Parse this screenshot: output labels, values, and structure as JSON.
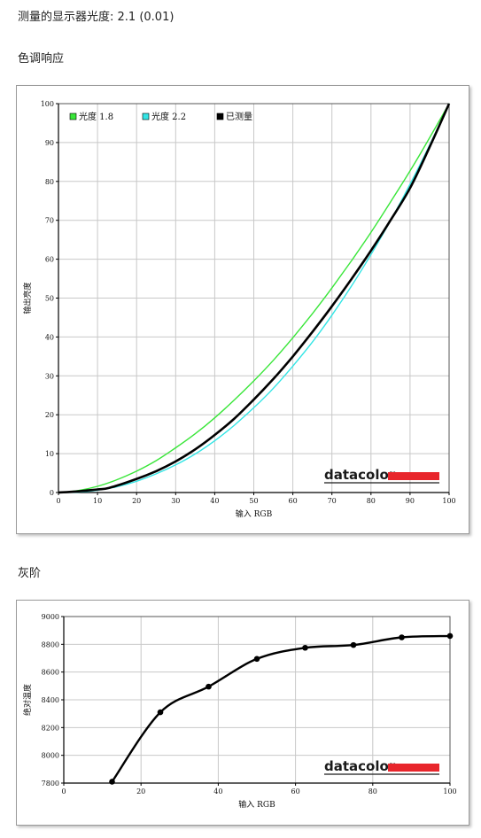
{
  "header": {
    "gamma_label": "测量的显示器光度: 2.1 (0.01)",
    "tone_response_title": "色调响应",
    "grayscale_title": "灰阶"
  },
  "brand": {
    "logo_text": "datacolor",
    "logo_accent": "#e8262c"
  },
  "colors": {
    "gamma18": "#39e639",
    "gamma22": "#33e5e5",
    "measured": "#000000",
    "grid": "#c8c8c8"
  },
  "chart_data": [
    {
      "type": "line",
      "xlabel": "输入 RGB",
      "ylabel": "输出亮度",
      "xlim": [
        0,
        100
      ],
      "ylim": [
        0,
        100
      ],
      "xticks": [
        0,
        10,
        20,
        30,
        40,
        50,
        60,
        70,
        80,
        90,
        100
      ],
      "yticks": [
        0,
        10,
        20,
        30,
        40,
        50,
        60,
        70,
        80,
        90,
        100
      ],
      "grid": true,
      "legend_position": "top-left",
      "series": [
        {
          "name": "光度 1.8",
          "color": "#39e639",
          "x": [
            0,
            5,
            10,
            15,
            20,
            25,
            30,
            35,
            40,
            45,
            50,
            55,
            60,
            65,
            70,
            75,
            80,
            85,
            90,
            95,
            100
          ],
          "y": [
            0,
            0.5,
            1.6,
            3.3,
            5.5,
            8.2,
            11.5,
            15.1,
            19.2,
            23.8,
            28.7,
            34.0,
            39.8,
            46.0,
            52.6,
            59.6,
            66.9,
            74.7,
            82.7,
            91.2,
            100
          ]
        },
        {
          "name": "光度 2.2",
          "color": "#33e5e5",
          "x": [
            0,
            5,
            10,
            15,
            20,
            25,
            30,
            35,
            40,
            45,
            50,
            55,
            60,
            65,
            70,
            75,
            80,
            85,
            90,
            95,
            100
          ],
          "y": [
            0,
            0.1,
            0.6,
            1.5,
            2.9,
            4.8,
            7.1,
            9.9,
            13.3,
            17.3,
            21.8,
            26.8,
            32.5,
            38.7,
            45.6,
            53.1,
            61.2,
            69.9,
            79.3,
            89.3,
            100
          ]
        },
        {
          "name": "已测量",
          "color": "#000000",
          "x": [
            0,
            5,
            10,
            13,
            20,
            25,
            30,
            35,
            40,
            45,
            50,
            55,
            60,
            65,
            70,
            75,
            80,
            85,
            90,
            95,
            100
          ],
          "y": [
            0,
            0.3,
            0.8,
            1.2,
            3.5,
            5.5,
            8.0,
            11.1,
            14.8,
            19.0,
            23.9,
            29.2,
            35.0,
            41.3,
            47.9,
            54.9,
            62.2,
            70.0,
            78.3,
            88.8,
            100
          ]
        }
      ]
    },
    {
      "type": "line",
      "xlabel": "输入 RGB",
      "ylabel": "绝对温度",
      "xlim": [
        0,
        100
      ],
      "ylim": [
        7800,
        9000
      ],
      "xticks": [
        0,
        20,
        40,
        60,
        80,
        100
      ],
      "yticks": [
        7800,
        8000,
        8200,
        8400,
        8600,
        8800,
        9000
      ],
      "grid": true,
      "series": [
        {
          "name": "",
          "color": "#000000",
          "x": [
            12.5,
            25,
            37.5,
            50,
            62.5,
            75,
            87.5,
            100
          ],
          "y": [
            7810,
            8310,
            8495,
            8695,
            8775,
            8795,
            8850,
            8860
          ]
        }
      ]
    }
  ]
}
